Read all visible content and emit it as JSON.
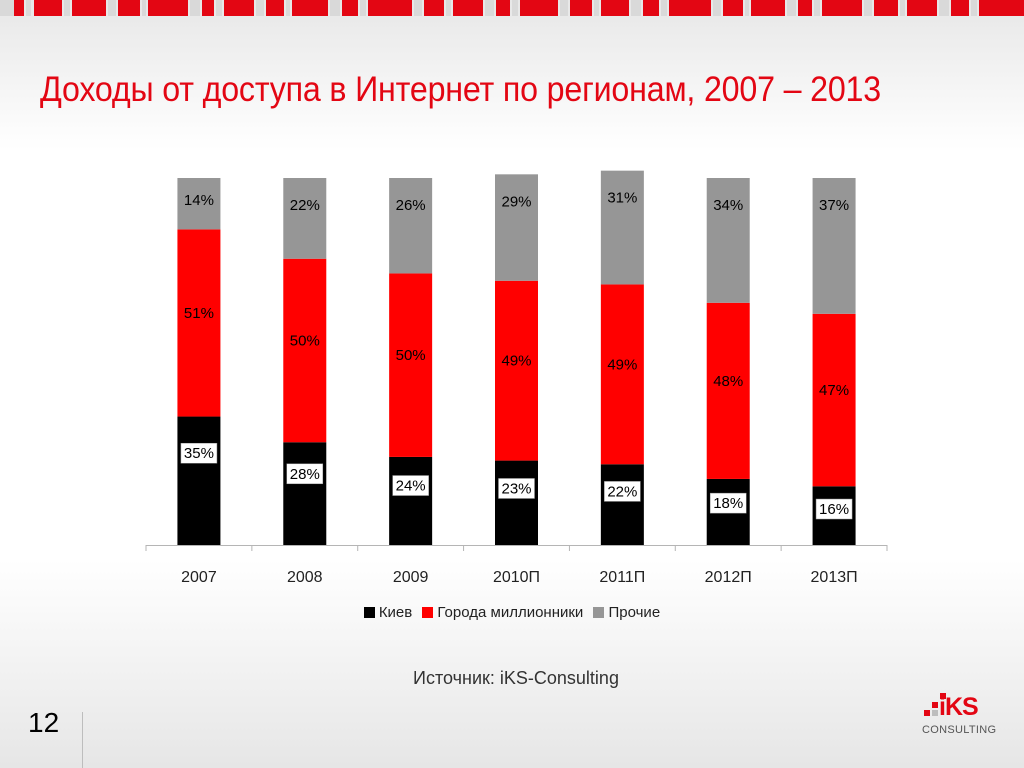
{
  "title": "Доходы от доступа в Интернет по регионам, 2007 – 2013",
  "source": "Источник: iKS-Consulting",
  "page_number": "12",
  "logo": {
    "name": "iKS",
    "sub": "CONSULTING"
  },
  "colors": {
    "accent": "#e30613",
    "kiev": "#000000",
    "cities": "#ff0000",
    "other": "#969696"
  },
  "chart_data": {
    "type": "bar",
    "stacked": true,
    "categories": [
      "2007",
      "2008",
      "2009",
      "2010П",
      "2011П",
      "2012П",
      "2013П"
    ],
    "series": [
      {
        "name": "Киев",
        "values": [
          35,
          28,
          24,
          23,
          22,
          18,
          16
        ],
        "labels": [
          "35%",
          "28%",
          "24%",
          "23%",
          "22%",
          "18%",
          "16%"
        ]
      },
      {
        "name": "Города миллионники",
        "values": [
          51,
          50,
          50,
          49,
          49,
          48,
          47
        ],
        "labels": [
          "51%",
          "50%",
          "50%",
          "49%",
          "49%",
          "48%",
          "47%"
        ]
      },
      {
        "name": "Прочие",
        "values": [
          14,
          22,
          26,
          29,
          31,
          34,
          37
        ],
        "labels": [
          "14%",
          "22%",
          "26%",
          "29%",
          "31%",
          "34%",
          "37%"
        ]
      }
    ],
    "title": "",
    "xlabel": "",
    "ylabel": "",
    "ylim": [
      0,
      100
    ],
    "grid": false,
    "legend": "bottom"
  }
}
